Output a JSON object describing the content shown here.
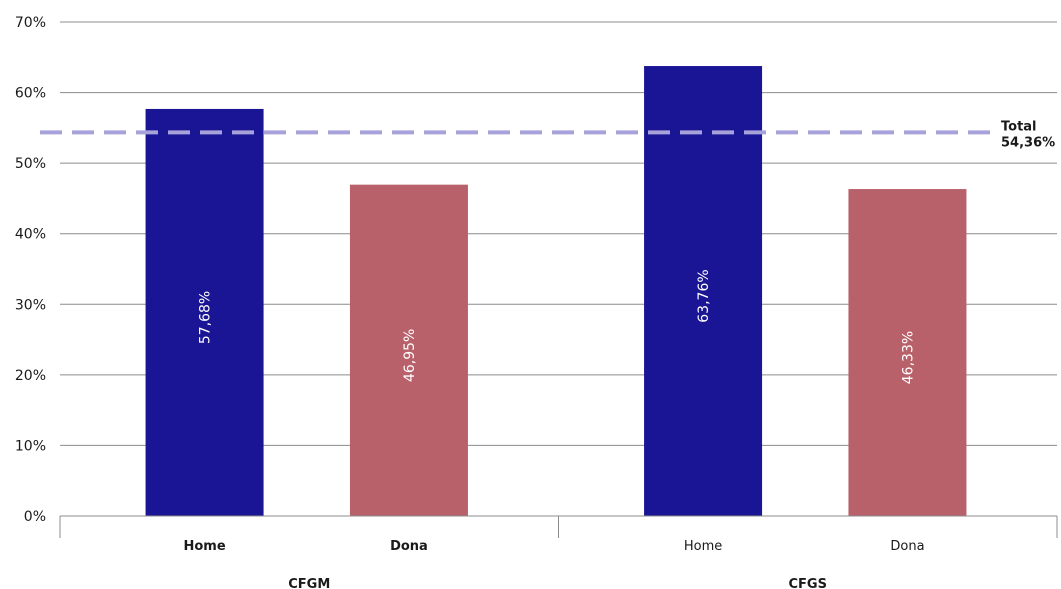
{
  "chart_data": {
    "type": "bar",
    "ylim": [
      0,
      70
    ],
    "yticks": [
      "0%",
      "10%",
      "20%",
      "30%",
      "40%",
      "50%",
      "60%",
      "70%"
    ],
    "groups": [
      {
        "label": "CFGM",
        "bars": [
          {
            "category": "Home",
            "value": 57.68,
            "label": "57,68%",
            "color": "#1a1594"
          },
          {
            "category": "Dona",
            "value": 46.95,
            "label": "46,95%",
            "color": "#b9616b"
          }
        ]
      },
      {
        "label": "CFGS",
        "bars": [
          {
            "category": "Home",
            "value": 63.76,
            "label": "63,76%",
            "color": "#1a1594"
          },
          {
            "category": "Dona",
            "value": 46.33,
            "label": "46,33%",
            "color": "#b9616b"
          }
        ]
      }
    ],
    "reference_line": {
      "label": "Total",
      "value": 54.36,
      "value_label": "54,36%",
      "color": "#a7a2d9",
      "style": "dashed"
    },
    "grid": true
  }
}
